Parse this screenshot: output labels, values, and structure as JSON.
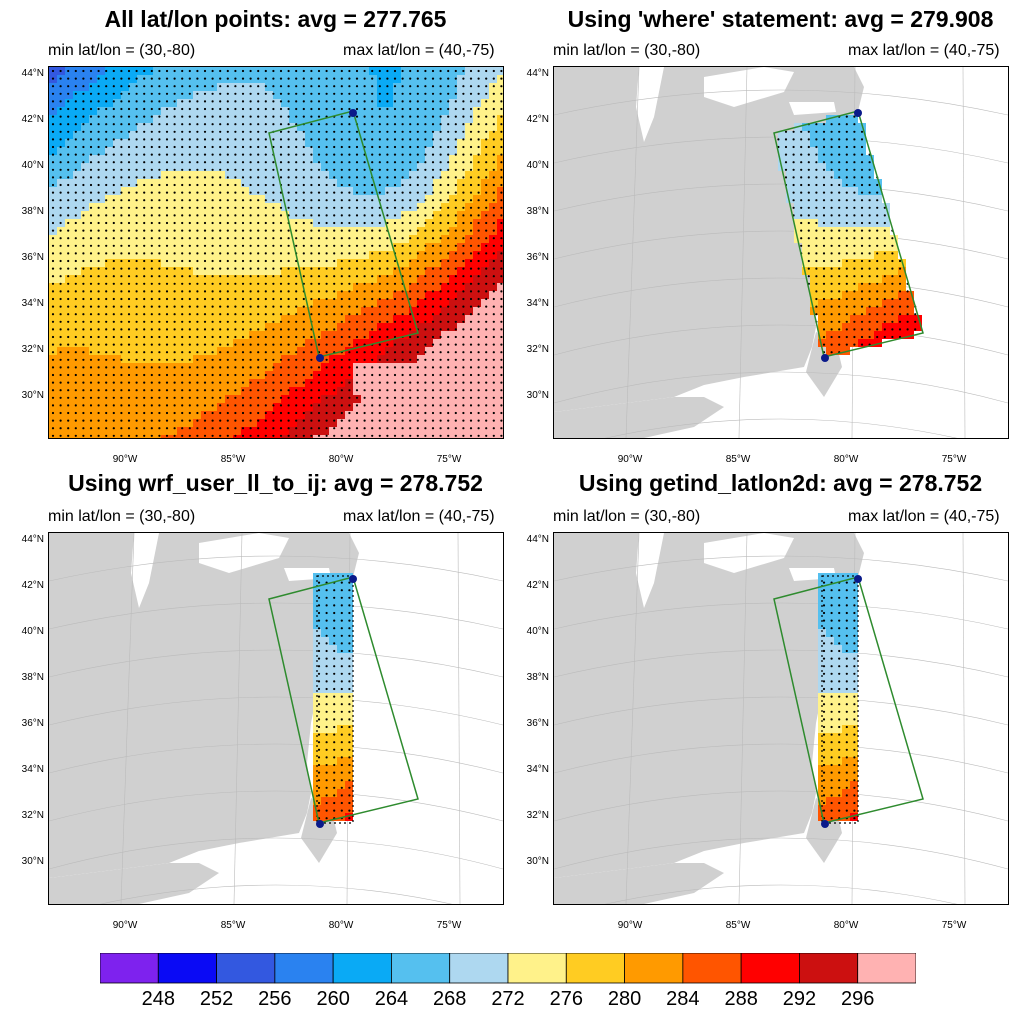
{
  "panels": [
    {
      "title": "All lat/lon points: avg = 277.765",
      "min_label": "min lat/lon = (30,-80)",
      "max_label": "max lat/lon = (40,-75)",
      "mode": "all"
    },
    {
      "title": "Using 'where' statement: avg = 279.908",
      "min_label": "min lat/lon = (30,-80)",
      "max_label": "max lat/lon = (40,-75)",
      "mode": "where"
    },
    {
      "title": "Using wrf_user_ll_to_ij: avg = 278.752",
      "min_label": "min lat/lon = (30,-80)",
      "max_label": "max lat/lon = (40,-75)",
      "mode": "ij"
    },
    {
      "title": "Using getind_latlon2d: avg = 278.752",
      "min_label": "min lat/lon = (30,-80)",
      "max_label": "max lat/lon = (40,-75)",
      "mode": "ij"
    }
  ],
  "lat_ticks": [
    "44°N",
    "42°N",
    "40°N",
    "38°N",
    "36°N",
    "34°N",
    "32°N",
    "30°N"
  ],
  "lon_ticks": [
    "90°W",
    "85°W",
    "80°W",
    "75°W"
  ],
  "colorbar": {
    "colors": [
      "#7e22ee",
      "#0a0af5",
      "#3358e0",
      "#2a82f0",
      "#0aaaf5",
      "#55c0ef",
      "#aed8f0",
      "#fff28a",
      "#ffcc22",
      "#ff9a00",
      "#ff5500",
      "#ff0000",
      "#cc1010",
      "#ffb2b2"
    ],
    "labels": [
      "248",
      "252",
      "256",
      "260",
      "264",
      "268",
      "272",
      "276",
      "280",
      "284",
      "288",
      "292",
      "296"
    ]
  },
  "colors": {
    "land": "#d0d0d0",
    "box": "#2e8b2e",
    "marker": "#0a1a8a"
  }
}
